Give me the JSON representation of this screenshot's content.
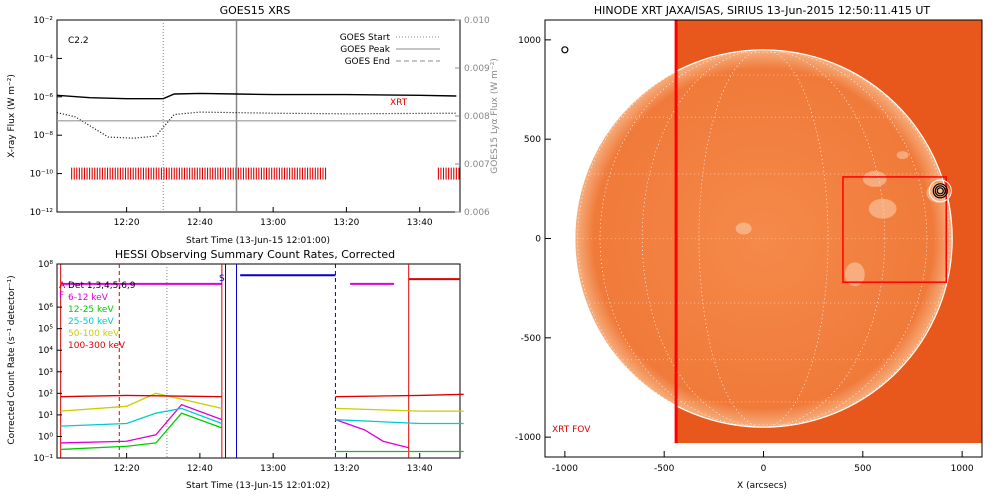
{
  "colors": {
    "goes_long": "#000000",
    "goes_short": "#999999",
    "xrt_marks": "#dd0000",
    "bg_sun": "#e8581c",
    "disk": "#f07a3a",
    "fov": "#ff0000"
  },
  "chart_data": [
    {
      "type": "line",
      "title": "GOES15 XRS",
      "flare_class": "C2.2",
      "xlabel": "Start Time (13-Jun-15 12:01:00)",
      "ylabel": "X-ray Flux (W m⁻²)",
      "ylabel_right": "GOES15 Lyα Flux (W m⁻²)",
      "yscale": "log",
      "ylim": [
        1e-12,
        0.01
      ],
      "yticks": [
        "10⁻²",
        "10⁻⁴",
        "10⁻⁶",
        "10⁻⁸",
        "10⁻¹⁰",
        "10⁻¹²"
      ],
      "yticks_right": [
        "0.010",
        "0.009",
        "0.008",
        "0.007",
        "0.006"
      ],
      "xticks": [
        "12:20",
        "12:40",
        "13:00",
        "13:20",
        "13:40"
      ],
      "legend": [
        "GOES Start",
        "GOES Peak",
        "GOES End"
      ],
      "legend_position": "top-right",
      "annotation": "XRT",
      "series": [
        {
          "name": "long",
          "x": [
            "12:01",
            "12:10",
            "12:20",
            "12:30",
            "12:33",
            "12:40",
            "12:50",
            "13:00",
            "13:20",
            "13:40",
            "13:50"
          ],
          "values": [
            1.2e-06,
            9e-07,
            8e-07,
            8e-07,
            1.4e-06,
            1.5e-06,
            1.4e-06,
            1.3e-06,
            1.3e-06,
            1.2e-06,
            1.1e-06
          ]
        },
        {
          "name": "short",
          "x": [
            "12:01",
            "12:06",
            "12:15",
            "12:22",
            "12:28",
            "12:33",
            "12:40",
            "13:00",
            "13:20",
            "13:50"
          ],
          "values": [
            1.5e-07,
            9e-08,
            8e-09,
            7e-09,
            9e-09,
            1.2e-07,
            1.6e-07,
            1.4e-07,
            1.3e-07,
            1.4e-07
          ]
        },
        {
          "name": "lya",
          "x": [
            "12:01",
            "12:30",
            "13:00",
            "13:50"
          ],
          "values": [
            0.0079,
            0.0079,
            0.0079,
            0.0079
          ]
        }
      ],
      "vlines": [
        {
          "x": "12:30",
          "style": "dotted",
          "color": "#888888"
        },
        {
          "x": "12:50",
          "style": "solid",
          "color": "#888888"
        }
      ]
    },
    {
      "type": "line",
      "title": "HESSI Observing Summary Count Rates, Corrected",
      "xlabel": "Start Time (13-Jun-15 12:01:02)",
      "ylabel": "Corrected Count Rate (s⁻¹ detector⁻¹)",
      "yscale": "log",
      "ylim": [
        0.1,
        100000000
      ],
      "yticks": [
        "10⁸",
        "10⁶",
        "10⁵",
        "10⁴",
        "10³",
        "10²",
        "10¹",
        "10⁰",
        "10⁻¹"
      ],
      "xticks": [
        "12:20",
        "12:40",
        "13:00",
        "13:20",
        "13:40"
      ],
      "legend": [
        "Det 1,3,4,5,6,9",
        "6-12 keV",
        "12-25 keV",
        "25-50 keV",
        "50-100 keV",
        "100-300 keV"
      ],
      "legend_colors": [
        "#000000",
        "#dd00dd",
        "#00cc00",
        "#00cccc",
        "#cccc00",
        "#dd0000"
      ],
      "flags": [
        "A",
        "F",
        "S"
      ],
      "series": [
        {
          "name": "6-12 keV",
          "x": [
            "12:02",
            "12:20",
            "12:28",
            "12:35",
            "12:46",
            "13:17",
            "13:25",
            "13:30",
            "13:37"
          ],
          "values": [
            0.5,
            0.6,
            1.2,
            30,
            6,
            6,
            2,
            0.6,
            0.3
          ]
        },
        {
          "name": "12-25 keV",
          "x": [
            "12:02",
            "12:20",
            "12:28",
            "12:35",
            "12:46",
            "13:17",
            "13:40",
            "13:52"
          ],
          "values": [
            0.25,
            0.35,
            0.5,
            12,
            2.5,
            0.2,
            0.2,
            0.2
          ]
        },
        {
          "name": "25-50 keV",
          "x": [
            "12:02",
            "12:20",
            "12:28",
            "12:35",
            "12:46",
            "13:17",
            "13:40",
            "13:52"
          ],
          "values": [
            3,
            4,
            12,
            20,
            4,
            6,
            4,
            4
          ]
        },
        {
          "name": "50-100 keV",
          "x": [
            "12:02",
            "12:20",
            "12:28",
            "12:46",
            "13:17",
            "13:40",
            "13:52"
          ],
          "values": [
            15,
            25,
            100,
            20,
            20,
            15,
            15
          ]
        },
        {
          "name": "100-300 keV",
          "x": [
            "12:02",
            "12:20",
            "12:46",
            "13:17",
            "13:40",
            "13:52"
          ],
          "values": [
            70,
            80,
            70,
            70,
            80,
            90
          ]
        }
      ]
    },
    {
      "type": "heatmap",
      "title": "HINODE XRT JAXA/ISAS, SIRIUS 13-Jun-2015 12:50:11.415 UT",
      "xlabel": "X (arcsecs)",
      "ylabel": "",
      "xlim": [
        -1100,
        1100
      ],
      "ylim": [
        -1100,
        1100
      ],
      "xticks": [
        "-1000",
        "-500",
        "0",
        "500",
        "1000"
      ],
      "yticks": [
        "1000",
        "500",
        "0",
        "-500",
        "-1000"
      ],
      "annotation": "XRT FOV",
      "fov_box": {
        "x": [
          400,
          920
        ],
        "y": [
          -220,
          310
        ]
      },
      "marker_circle": {
        "x": [
          -1000
        ],
        "y": [
          950
        ]
      },
      "flare_marker": {
        "x": [
          890
        ],
        "y": [
          240
        ]
      }
    }
  ]
}
